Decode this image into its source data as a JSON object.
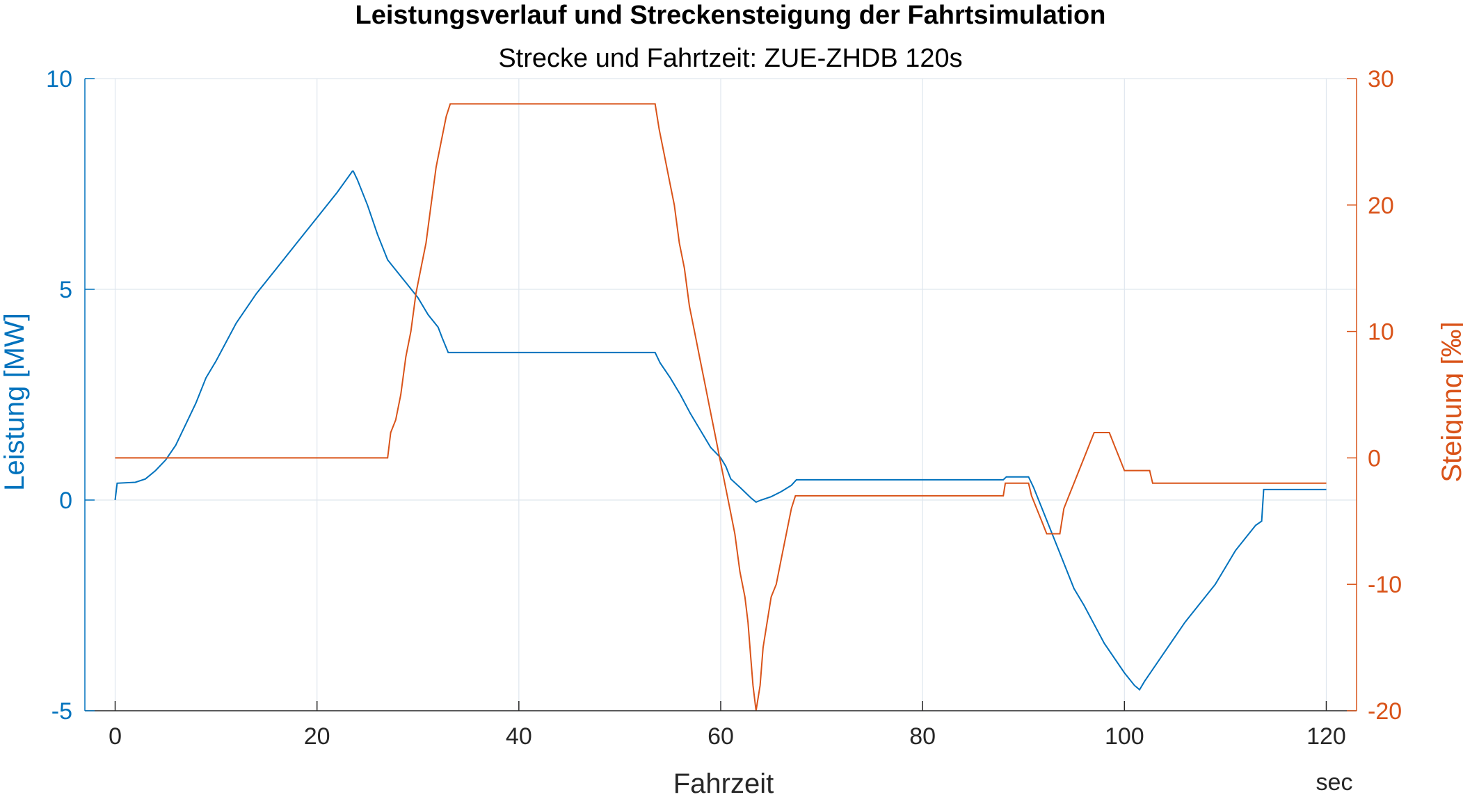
{
  "chart_data": {
    "type": "line",
    "title": "Leistungsverlauf und Streckensteigung der Fahrtsimulation",
    "subtitle": "Strecke und Fahrtzeit: ZUE-ZHDB 120s",
    "xlabel": "Fahrzeit",
    "xunit": "sec",
    "ylabel_left": "Leistung [MW]",
    "ylabel_right": "Steigung [‰]",
    "xlim": [
      -3,
      123
    ],
    "ylim_left": [
      -5,
      10
    ],
    "ylim_right": [
      -20,
      30
    ],
    "xticks": [
      0,
      20,
      40,
      60,
      80,
      100,
      120
    ],
    "yticks_left": [
      -5,
      0,
      5,
      10
    ],
    "yticks_right": [
      -20,
      -10,
      0,
      10,
      20,
      30
    ],
    "grid": true,
    "colors": {
      "left": "#0072BD",
      "right": "#D95319"
    },
    "series": [
      {
        "axis": "left",
        "color": "#0072BD",
        "points": [
          [
            0,
            0
          ],
          [
            0.2,
            0.4
          ],
          [
            2,
            0.42
          ],
          [
            3,
            0.5
          ],
          [
            4,
            0.7
          ],
          [
            5,
            0.95
          ],
          [
            6,
            1.3
          ],
          [
            7,
            1.8
          ],
          [
            8,
            2.3
          ],
          [
            9,
            2.9
          ],
          [
            10,
            3.3
          ],
          [
            12,
            4.2
          ],
          [
            14,
            4.9
          ],
          [
            16,
            5.5
          ],
          [
            18,
            6.1
          ],
          [
            20,
            6.7
          ],
          [
            22,
            7.3
          ],
          [
            23.5,
            7.8
          ],
          [
            23.6,
            7.8
          ],
          [
            24,
            7.6
          ],
          [
            25,
            7.0
          ],
          [
            26,
            6.3
          ],
          [
            27,
            5.7
          ],
          [
            28,
            5.4
          ],
          [
            29,
            5.1
          ],
          [
            30,
            4.8
          ],
          [
            31,
            4.4
          ],
          [
            32,
            4.1
          ],
          [
            32.4,
            3.85
          ],
          [
            33,
            3.5
          ],
          [
            33.5,
            3.5
          ],
          [
            40,
            3.5
          ],
          [
            45,
            3.5
          ],
          [
            50,
            3.5
          ],
          [
            53.5,
            3.5
          ],
          [
            54,
            3.25
          ],
          [
            55,
            2.9
          ],
          [
            56,
            2.5
          ],
          [
            57,
            2.05
          ],
          [
            58,
            1.65
          ],
          [
            59,
            1.25
          ],
          [
            60,
            1.0
          ],
          [
            60.5,
            0.8
          ],
          [
            61,
            0.5
          ],
          [
            62,
            0.28
          ],
          [
            63,
            0.05
          ],
          [
            63.5,
            -0.05
          ],
          [
            64,
            0
          ],
          [
            65,
            0.08
          ],
          [
            66,
            0.2
          ],
          [
            67,
            0.35
          ],
          [
            67.5,
            0.48
          ],
          [
            70,
            0.48
          ],
          [
            80,
            0.48
          ],
          [
            88,
            0.48
          ],
          [
            88.3,
            0.55
          ],
          [
            90.5,
            0.55
          ],
          [
            91,
            0.3
          ],
          [
            92,
            -0.3
          ],
          [
            93,
            -0.9
          ],
          [
            94,
            -1.5
          ],
          [
            95,
            -2.1
          ],
          [
            96,
            -2.5
          ],
          [
            98,
            -3.4
          ],
          [
            100,
            -4.1
          ],
          [
            101,
            -4.4
          ],
          [
            101.5,
            -4.5
          ],
          [
            102,
            -4.3
          ],
          [
            104,
            -3.6
          ],
          [
            106,
            -2.9
          ],
          [
            108,
            -2.3
          ],
          [
            109,
            -2.0
          ],
          [
            110,
            -1.6
          ],
          [
            111,
            -1.2
          ],
          [
            112,
            -0.9
          ],
          [
            113,
            -0.6
          ],
          [
            113.6,
            -0.5
          ],
          [
            113.8,
            0.25
          ],
          [
            115,
            0.25
          ],
          [
            120,
            0.25
          ]
        ]
      },
      {
        "axis": "right",
        "color": "#D95319",
        "points": [
          [
            0,
            0
          ],
          [
            27,
            0
          ],
          [
            27.3,
            2
          ],
          [
            27.8,
            3
          ],
          [
            28.3,
            5
          ],
          [
            28.8,
            8
          ],
          [
            29.3,
            10
          ],
          [
            29.8,
            13
          ],
          [
            30.3,
            15
          ],
          [
            30.8,
            17
          ],
          [
            31.3,
            20
          ],
          [
            31.8,
            23
          ],
          [
            32.3,
            25
          ],
          [
            32.8,
            27
          ],
          [
            33.2,
            28
          ],
          [
            33.8,
            28
          ],
          [
            40,
            28
          ],
          [
            53.5,
            28
          ],
          [
            53.9,
            26
          ],
          [
            54.4,
            24
          ],
          [
            54.9,
            22
          ],
          [
            55.4,
            20
          ],
          [
            55.9,
            17
          ],
          [
            56.4,
            15
          ],
          [
            56.9,
            12
          ],
          [
            57.4,
            10
          ],
          [
            57.9,
            8
          ],
          [
            58.4,
            6
          ],
          [
            58.9,
            4
          ],
          [
            59.4,
            2
          ],
          [
            59.9,
            0
          ],
          [
            60.4,
            -2
          ],
          [
            60.9,
            -4
          ],
          [
            61.4,
            -6
          ],
          [
            61.9,
            -9
          ],
          [
            62.4,
            -11
          ],
          [
            62.7,
            -13
          ],
          [
            63.0,
            -16
          ],
          [
            63.2,
            -18
          ],
          [
            63.5,
            -20
          ],
          [
            63.9,
            -18
          ],
          [
            64.2,
            -15
          ],
          [
            64.6,
            -13
          ],
          [
            65.0,
            -11
          ],
          [
            65.5,
            -10
          ],
          [
            66.0,
            -8
          ],
          [
            66.5,
            -6
          ],
          [
            67.0,
            -4
          ],
          [
            67.4,
            -3
          ],
          [
            67.8,
            -3
          ],
          [
            88,
            -3
          ],
          [
            88.2,
            -2
          ],
          [
            90.5,
            -2
          ],
          [
            90.8,
            -3
          ],
          [
            91.3,
            -4
          ],
          [
            91.8,
            -5
          ],
          [
            92.3,
            -6
          ],
          [
            93.6,
            -6
          ],
          [
            94,
            -4
          ],
          [
            94.5,
            -3
          ],
          [
            95,
            -2
          ],
          [
            95.5,
            -1
          ],
          [
            96,
            0
          ],
          [
            96.5,
            1
          ],
          [
            97,
            2
          ],
          [
            98.5,
            2
          ],
          [
            99,
            1
          ],
          [
            99.5,
            0
          ],
          [
            100,
            -1
          ],
          [
            102.5,
            -1
          ],
          [
            102.8,
            -2
          ],
          [
            110,
            -2
          ],
          [
            120,
            -2
          ]
        ]
      }
    ]
  }
}
